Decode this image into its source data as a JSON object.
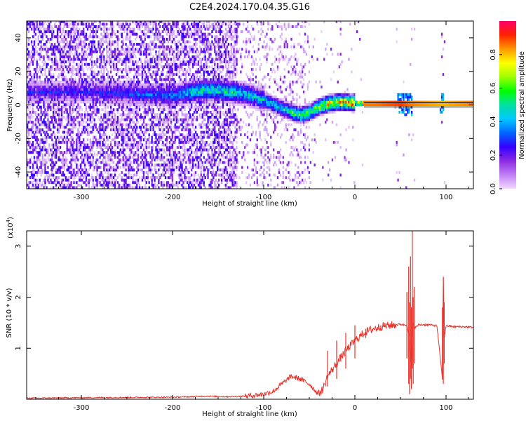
{
  "title": "C2E4.2024.170.04.35.G16",
  "chart_data": [
    {
      "type": "heatmap",
      "xlabel": "Height of straight line (km)",
      "ylabel": "Frequency (Hz)",
      "xlim": [
        -360,
        130
      ],
      "ylim": [
        -50,
        50
      ],
      "xticks": [
        -300,
        -200,
        -100,
        0,
        100
      ],
      "yticks": [
        -40,
        -20,
        0,
        20,
        40
      ],
      "grid": false,
      "colorbar": {
        "label": "Normalized spectral amplitude",
        "range": [
          0,
          1
        ],
        "ticks": [
          0.0,
          0.2,
          0.4,
          0.6,
          0.8
        ],
        "colormap": [
          "#f2d9ff",
          "#c07ef5",
          "#8a2be2",
          "#3300ff",
          "#0066ff",
          "#00c8ff",
          "#00e0a0",
          "#00ff00",
          "#a0ff00",
          "#ffff00",
          "#ff9900",
          "#ff2200",
          "#ff0066"
        ]
      },
      "ridge": {
        "x": [
          -360,
          -300,
          -250,
          -200,
          -170,
          -150,
          -120,
          -100,
          -80,
          -60,
          -50,
          -40,
          -30,
          -20,
          -10,
          0,
          20,
          50,
          60,
          95,
          130
        ],
        "y": [
          7,
          7,
          6,
          5,
          8,
          8,
          6,
          2,
          -3,
          -7,
          -5,
          -2,
          0,
          1,
          1,
          0.5,
          0,
          0,
          0,
          0,
          0
        ],
        "peak_amplitude": [
          0.25,
          0.25,
          0.3,
          0.35,
          0.5,
          0.5,
          0.45,
          0.45,
          0.5,
          0.6,
          0.6,
          0.7,
          0.75,
          0.8,
          0.85,
          0.9,
          0.9,
          0.95,
          0.9,
          0.85,
          0.9
        ]
      }
    },
    {
      "type": "line",
      "xlabel": "Height of straight line (km)",
      "ylabel": "SNR (10 * v/v)",
      "y_multiplier": "(x10",
      "y_multiplier_exp": "4",
      "y_multiplier_close": ")",
      "xlim": [
        -360,
        130
      ],
      "ylim": [
        0,
        3.3
      ],
      "xticks": [
        -300,
        -200,
        -100,
        0,
        100
      ],
      "yticks": [
        1,
        2,
        3
      ],
      "grid": false,
      "series": [
        {
          "color": "#e8332b",
          "x": [
            -360,
            -300,
            -200,
            -160,
            -140,
            -120,
            -100,
            -90,
            -80,
            -70,
            -60,
            -50,
            -40,
            -35,
            -30,
            -20,
            -10,
            0,
            10,
            20,
            30,
            40,
            50,
            57,
            60,
            62,
            64,
            66,
            70,
            80,
            90,
            96,
            97,
            98,
            100,
            110,
            120,
            130
          ],
          "y": [
            0.02,
            0.03,
            0.04,
            0.06,
            0.05,
            0.06,
            0.1,
            0.15,
            0.3,
            0.45,
            0.4,
            0.3,
            0.1,
            0.2,
            0.45,
            0.7,
            0.95,
            1.15,
            1.3,
            1.38,
            1.43,
            1.45,
            1.47,
            1.45,
            1.2,
            0.7,
            1.5,
            1.4,
            1.46,
            1.46,
            1.44,
            0.4,
            2.4,
            1.2,
            1.44,
            1.42,
            1.42,
            1.41
          ]
        }
      ],
      "spikes": {
        "x": [
          -30,
          -20,
          -10,
          0,
          12,
          57,
          59,
          60,
          61,
          62,
          63,
          64,
          65,
          96,
          97,
          98
        ],
        "high": [
          0.95,
          1.15,
          1.3,
          1.45,
          1.38,
          2.1,
          2.6,
          1.9,
          2.8,
          1.8,
          3.3,
          2.0,
          2.2,
          1.8,
          2.4,
          1.9
        ],
        "low": [
          0.25,
          0.4,
          0.6,
          0.8,
          1.2,
          0.8,
          0.3,
          0.1,
          0.4,
          0.2,
          0.6,
          0.3,
          0.7,
          0.5,
          0.3,
          0.7
        ]
      }
    }
  ]
}
